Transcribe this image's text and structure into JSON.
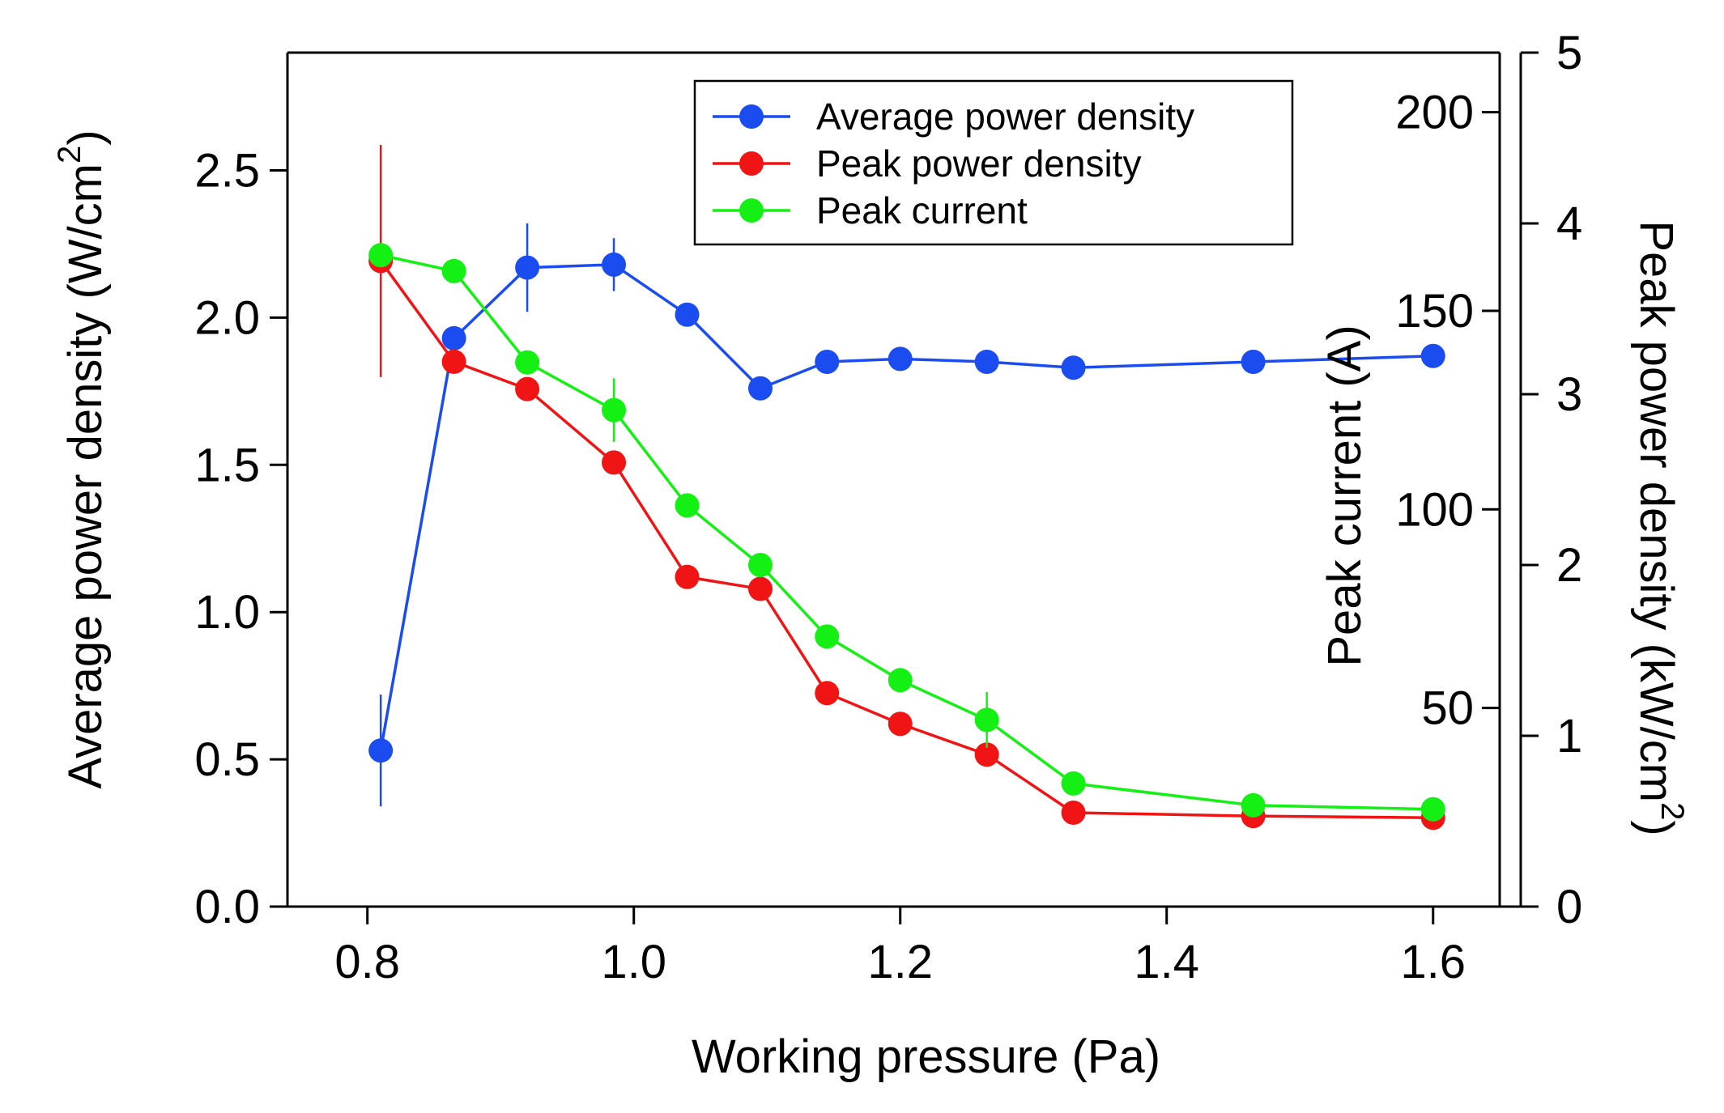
{
  "chart_data": {
    "type": "line",
    "xlabel": "Working pressure (Pa)",
    "xlim": [
      0.74,
      1.65
    ],
    "xticks": [
      0.8,
      1.0,
      1.2,
      1.4,
      1.6
    ],
    "xtick_labels": [
      "0.8",
      "1.0",
      "1.2",
      "1.4",
      "1.6"
    ],
    "axes": {
      "left": {
        "label": "Average power density (W/cm",
        "label_sup": "2",
        "label_end": ")",
        "lim": [
          0,
          2.9
        ],
        "ticks": [
          0.0,
          0.5,
          1.0,
          1.5,
          2.0,
          2.5
        ],
        "tick_labels": [
          "0.0",
          "0.5",
          "1.0",
          "1.5",
          "2.0",
          "2.5"
        ]
      },
      "right_inner": {
        "label": "Peak current (A)",
        "lim": [
          0,
          215
        ],
        "ticks": [
          50,
          100,
          150,
          200
        ],
        "tick_labels": [
          "50",
          "100",
          "150",
          "200"
        ]
      },
      "right_outer": {
        "label": "Peak power density (kW/cm",
        "label_sup": "2",
        "label_end": ")",
        "lim": [
          0,
          5
        ],
        "ticks": [
          0,
          1,
          2,
          3,
          4,
          5
        ],
        "tick_labels": [
          "0",
          "1",
          "2",
          "3",
          "4",
          "5"
        ]
      }
    },
    "series": [
      {
        "name": "Average power density",
        "axis": "left",
        "color": "#1a4cf0",
        "x": [
          0.81,
          0.865,
          0.92,
          0.985,
          1.04,
          1.095,
          1.145,
          1.2,
          1.265,
          1.33,
          1.465,
          1.6
        ],
        "y": [
          0.53,
          1.93,
          2.17,
          2.18,
          2.01,
          1.76,
          1.85,
          1.86,
          1.85,
          1.83,
          1.85,
          1.87
        ],
        "err": [
          0.19,
          0,
          0.15,
          0.09,
          0,
          0,
          0,
          0,
          0,
          0,
          0,
          0
        ]
      },
      {
        "name": "Peak power density",
        "axis": "right_outer",
        "color": "#f01414",
        "x": [
          0.81,
          0.865,
          0.92,
          0.985,
          1.04,
          1.095,
          1.145,
          1.2,
          1.265,
          1.33,
          1.465,
          1.6
        ],
        "y": [
          3.78,
          3.19,
          3.03,
          2.6,
          1.93,
          1.86,
          1.25,
          1.07,
          0.89,
          0.55,
          0.53,
          0.52
        ],
        "err": [
          0.68,
          0,
          0,
          0,
          0,
          0,
          0,
          0,
          0,
          0,
          0,
          0
        ]
      },
      {
        "name": "Peak current",
        "axis": "right_inner",
        "color": "#14f014",
        "x": [
          0.81,
          0.865,
          0.92,
          0.985,
          1.04,
          1.095,
          1.145,
          1.2,
          1.265,
          1.33,
          1.465,
          1.6
        ],
        "y": [
          164,
          160,
          137,
          125,
          101,
          86,
          68,
          57,
          47,
          31,
          25.5,
          24.5
        ],
        "err": [
          0,
          0,
          0,
          8,
          0,
          0,
          0,
          0,
          7,
          0,
          0,
          0
        ]
      }
    ],
    "legend": {
      "position": "top-center",
      "entries": [
        "Average power density",
        "Peak power density",
        "Peak current"
      ]
    }
  }
}
